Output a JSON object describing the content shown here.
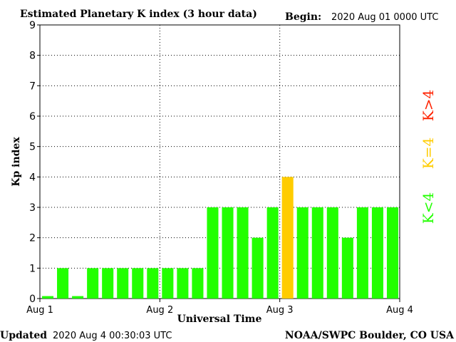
{
  "header": {
    "title": "Estimated Planetary K index (3 hour data)",
    "begin_label": "Begin:",
    "begin_value": "2020 Aug 01 0000 UTC"
  },
  "footer": {
    "updated_label": "Updated",
    "updated_value": "2020 Aug  4 00:30:03 UTC",
    "source": "NOAA/SWPC Boulder, CO USA"
  },
  "legend": {
    "low": {
      "label": "K<4",
      "color": "#22ff00"
    },
    "mid": {
      "label": "K=4",
      "color": "#ffcc00"
    },
    "high": {
      "label": "K>4",
      "color": "#ff2200"
    }
  },
  "chart_data": {
    "type": "bar",
    "title": "Estimated Planetary K index (3 hour data)",
    "xlabel": "Universal Time",
    "ylabel": "Kp index",
    "ylim": [
      0,
      9
    ],
    "yticks": [
      "0",
      "1",
      "2",
      "3",
      "4",
      "5",
      "6",
      "7",
      "8",
      "9"
    ],
    "xticks": [
      "Aug 1",
      "Aug 2",
      "Aug 3",
      "Aug 4"
    ],
    "grid": true,
    "values": [
      0,
      1,
      0,
      1,
      1,
      1,
      1,
      1,
      1,
      1,
      1,
      3,
      3,
      3,
      2,
      3,
      4,
      3,
      3,
      3,
      2,
      3,
      3,
      3
    ],
    "colors": {
      "below4": "#22ff00",
      "equal4": "#ffcc00",
      "above4": "#ff2200"
    }
  }
}
